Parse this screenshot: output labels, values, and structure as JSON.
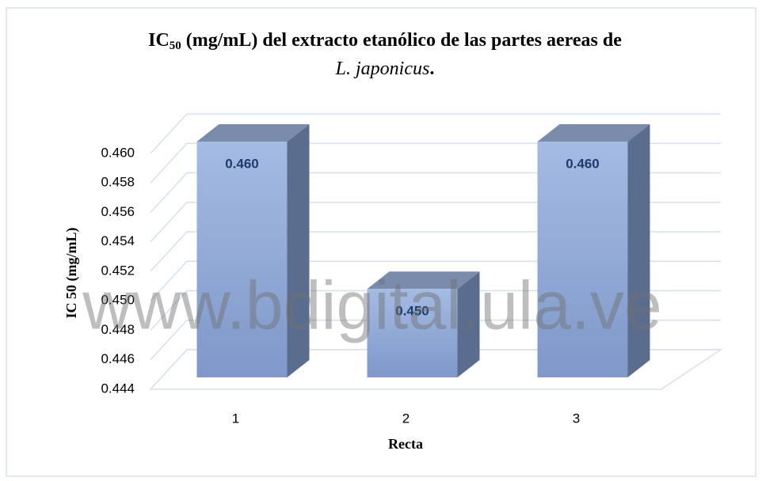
{
  "chart_data": {
    "type": "bar3d",
    "title": [
      "IC",
      "50",
      " (mg/mL) del extracto etanólico de las partes aereas de",
      "L. japonicus",
      "."
    ],
    "ylabel": "IC 50 (mg/mL)",
    "xlabel": "Recta",
    "watermark": "www.bdigital.ula.ve",
    "categories": [
      "1",
      "2",
      "3"
    ],
    "values": [
      0.46,
      0.45,
      0.46
    ],
    "value_labels": [
      "0.460",
      "0.450",
      "0.460"
    ],
    "color": "#8ea7d6",
    "ylim": [
      0.444,
      0.46
    ],
    "yticks": [
      0.444,
      0.446,
      0.448,
      {
        "value": 0.45,
        "label": "0.450"
      },
      0.452,
      0.454,
      0.456,
      0.458,
      {
        "value": 0.46,
        "label": "0.460"
      }
    ],
    "grid": true
  }
}
